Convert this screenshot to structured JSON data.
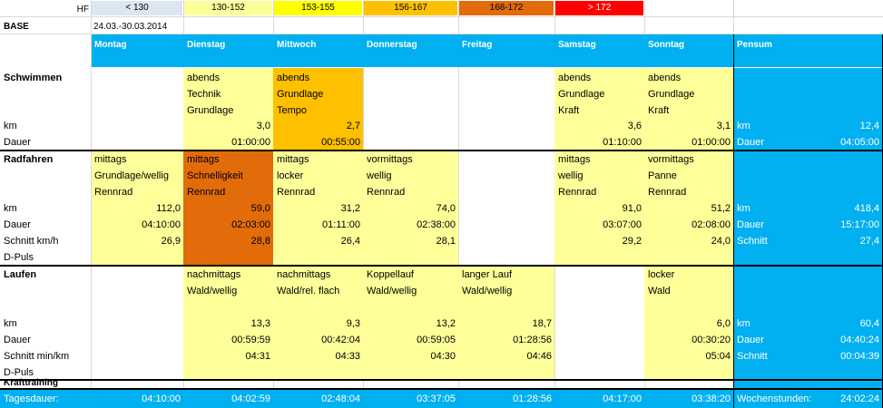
{
  "legend": {
    "hf_label": "HF",
    "items": [
      {
        "label": "< 130",
        "color": "#dce6f1"
      },
      {
        "label": "130-152",
        "color": "#ffff99"
      },
      {
        "label": "153-155",
        "color": "#ffff00"
      },
      {
        "label": "156-167",
        "color": "#ffc000"
      },
      {
        "label": "168-172",
        "color": "#e26b0a"
      },
      {
        "label": "> 172",
        "color": "#ff0000"
      }
    ]
  },
  "base": {
    "label": "BASE",
    "date_range": "24.03.-30.03.2014"
  },
  "days": [
    "Montag",
    "Dienstag",
    "Mittwoch",
    "Donnerstag",
    "Freitag",
    "Samstag",
    "Sonntag"
  ],
  "pensum_label": "Pensum",
  "colors": {
    "header": "#00b0f0",
    "light": "#ffff99",
    "orange": "#ffc000",
    "darkorange": "#e26b0a"
  },
  "schwimmen": {
    "title": "Schwimmen",
    "row_labels": [
      "km",
      "Dauer"
    ],
    "dienstag": {
      "lines": [
        "abends",
        "Technik",
        "Grundlage"
      ],
      "km": "3,0",
      "dauer": "01:00:00"
    },
    "mittwoch": {
      "lines": [
        "abends",
        "Grundlage",
        "Tempo"
      ],
      "km": "2,7",
      "dauer": "00:55:00"
    },
    "samstag": {
      "lines": [
        "abends",
        "Grundlage",
        "Kraft"
      ],
      "km": "3,6",
      "dauer": "01:10:00"
    },
    "sonntag": {
      "lines": [
        "abends",
        "Grundlage",
        "Kraft"
      ],
      "km": "3,1",
      "dauer": "01:00:00"
    },
    "pensum": {
      "km_label": "km",
      "km": "12,4",
      "dauer_label": "Dauer",
      "dauer": "04:05:00"
    }
  },
  "radfahren": {
    "title": "Radfahren",
    "row_labels": [
      "km",
      "Dauer",
      "Schnitt km/h",
      "D-Puls"
    ],
    "montag": {
      "lines": [
        "mittags",
        "Grundlage/wellig",
        "Rennrad"
      ],
      "km": "112,0",
      "dauer": "04:10:00",
      "schnitt": "26,9"
    },
    "dienstag": {
      "lines": [
        "mittags",
        "Schnelligkeit",
        "Rennrad"
      ],
      "km": "59,0",
      "dauer": "02:03:00",
      "schnitt": "28,8"
    },
    "mittwoch": {
      "lines": [
        "mittags",
        "locker",
        "Rennrad"
      ],
      "km": "31,2",
      "dauer": "01:11:00",
      "schnitt": "26,4"
    },
    "donnerstag": {
      "lines": [
        "vormittags",
        "wellig",
        "Rennrad"
      ],
      "km": "74,0",
      "dauer": "02:38:00",
      "schnitt": "28,1"
    },
    "samstag": {
      "lines": [
        "mittags",
        "wellig",
        "Rennrad"
      ],
      "km": "91,0",
      "dauer": "03:07:00",
      "schnitt": "29,2"
    },
    "sonntag": {
      "lines": [
        "vormittags",
        "Panne",
        "Rennrad"
      ],
      "km": "51,2",
      "dauer": "02:08:00",
      "schnitt": "24,0"
    },
    "pensum": {
      "km_label": "km",
      "km": "418,4",
      "dauer_label": "Dauer",
      "dauer": "15:17:00",
      "schnitt_label": "Schnitt",
      "schnitt": "27,4"
    }
  },
  "laufen": {
    "title": "Laufen",
    "row_labels": [
      "km",
      "Dauer",
      "Schnitt min/km",
      "D-Puls"
    ],
    "dienstag": {
      "lines": [
        "nachmittags",
        "Wald/wellig"
      ],
      "km": "13,3",
      "dauer": "00:59:59",
      "schnitt": "04:31"
    },
    "mittwoch": {
      "lines": [
        "nachmittags",
        "Wald/rel. flach"
      ],
      "km": "9,3",
      "dauer": "00:42:04",
      "schnitt": "04:33"
    },
    "donnerstag": {
      "lines": [
        "Koppellauf",
        "Wald/wellig"
      ],
      "km": "13,2",
      "dauer": "00:59:05",
      "schnitt": "04:30"
    },
    "freitag": {
      "lines": [
        "langer Lauf",
        "Wald/wellig"
      ],
      "km": "18,7",
      "dauer": "01:28:56",
      "schnitt": "04:46"
    },
    "sonntag": {
      "lines": [
        "locker",
        "Wald"
      ],
      "km": "6,0",
      "dauer": "00:30:20",
      "schnitt": "05:04"
    },
    "pensum": {
      "km_label": "km",
      "km": "60,4",
      "dauer_label": "Dauer",
      "dauer": "04:40:24",
      "schnitt_label": "Schnitt",
      "schnitt": "00:04:39"
    }
  },
  "krafttraining": {
    "title": "Krafttraining"
  },
  "footer": {
    "label": "Tagesdauer:",
    "values": [
      "04:10:00",
      "04:02:59",
      "02:48:04",
      "03:37:05",
      "01:28:56",
      "04:17:00",
      "03:38:20"
    ],
    "week_label": "Wochenstunden:",
    "week_value": "24:02:24"
  }
}
